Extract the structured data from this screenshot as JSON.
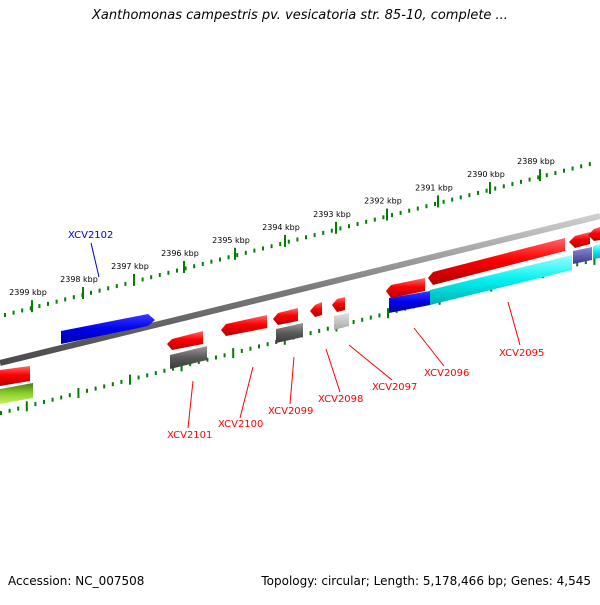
{
  "header": {
    "title": "Xanthomonas campestris pv. vesicatoria str. 85-10, complete ..."
  },
  "footer": {
    "accession": "Accession: NC_007508",
    "summary": "Topology: circular; Length: 5,178,466 bp; Genes: 4,545"
  },
  "colors": {
    "forward_gene": "#ff0000",
    "reverse_gene": "#0000ff",
    "cds_gray": "#606060",
    "cds_cyan": "#00ffff",
    "tick_green": "#008000",
    "label_red": "#ff0000",
    "label_blue": "#0000cc",
    "backbone": "#888888"
  },
  "scale_labels": [
    "2389 kbp",
    "2390 kbp",
    "2391 kbp",
    "2392 kbp",
    "2393 kbp",
    "2394 kbp",
    "2395 kbp",
    "2396 kbp",
    "2397 kbp",
    "2398 kbp",
    "2399 kbp"
  ],
  "gene_labels": [
    {
      "id": "XCV2102",
      "strand": "reverse"
    },
    {
      "id": "XCV2101",
      "strand": "forward"
    },
    {
      "id": "XCV2100",
      "strand": "forward"
    },
    {
      "id": "XCV2099",
      "strand": "forward"
    },
    {
      "id": "XCV2098",
      "strand": "forward"
    },
    {
      "id": "XCV2097",
      "strand": "forward"
    },
    {
      "id": "XCV2096",
      "strand": "forward"
    },
    {
      "id": "XCV2095",
      "strand": "forward"
    }
  ]
}
